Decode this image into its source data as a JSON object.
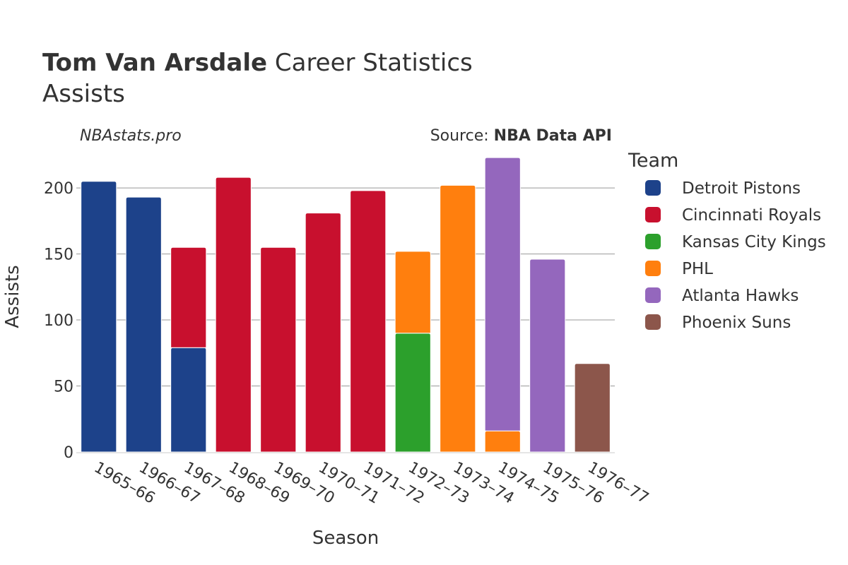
{
  "chart_data": {
    "type": "bar",
    "barmode": "stack",
    "title_bold": "Tom Van Arsdale",
    "title_rest": " Career Statistics",
    "subtitle": "Assists",
    "watermark": "NBAstats.pro",
    "source_prefix": "Source: ",
    "source_name": "NBA Data API",
    "xlabel": "Season",
    "ylabel": "Assists",
    "ylim": [
      0,
      230
    ],
    "yticks": [
      0,
      50,
      100,
      150,
      200
    ],
    "grid": true,
    "legend_title": "Team",
    "legend_position": "right",
    "categories": [
      "1965–66",
      "1966–67",
      "1967–68",
      "1968–69",
      "1969–70",
      "1970–71",
      "1971–72",
      "1972–73",
      "1973–74",
      "1974–75",
      "1975–76",
      "1976–77"
    ],
    "series": [
      {
        "name": "Detroit Pistons",
        "color": "#1d428a",
        "values": [
          205,
          193,
          79,
          0,
          0,
          0,
          0,
          0,
          0,
          0,
          0,
          0
        ]
      },
      {
        "name": "Cincinnati Royals",
        "color": "#c8102e",
        "values": [
          0,
          0,
          76,
          208,
          155,
          181,
          198,
          0,
          0,
          0,
          0,
          0
        ]
      },
      {
        "name": "Kansas City Kings",
        "color": "#2ca02c",
        "values": [
          0,
          0,
          0,
          0,
          0,
          0,
          0,
          90,
          0,
          0,
          0,
          0
        ]
      },
      {
        "name": "PHL",
        "color": "#ff7f0e",
        "values": [
          0,
          0,
          0,
          0,
          0,
          0,
          0,
          62,
          202,
          16,
          0,
          0
        ]
      },
      {
        "name": "Atlanta Hawks",
        "color": "#9467bd",
        "values": [
          0,
          0,
          0,
          0,
          0,
          0,
          0,
          0,
          0,
          207,
          146,
          0
        ]
      },
      {
        "name": "Phoenix Suns",
        "color": "#8c564b",
        "values": [
          0,
          0,
          0,
          0,
          0,
          0,
          0,
          0,
          0,
          0,
          0,
          67
        ]
      }
    ]
  }
}
